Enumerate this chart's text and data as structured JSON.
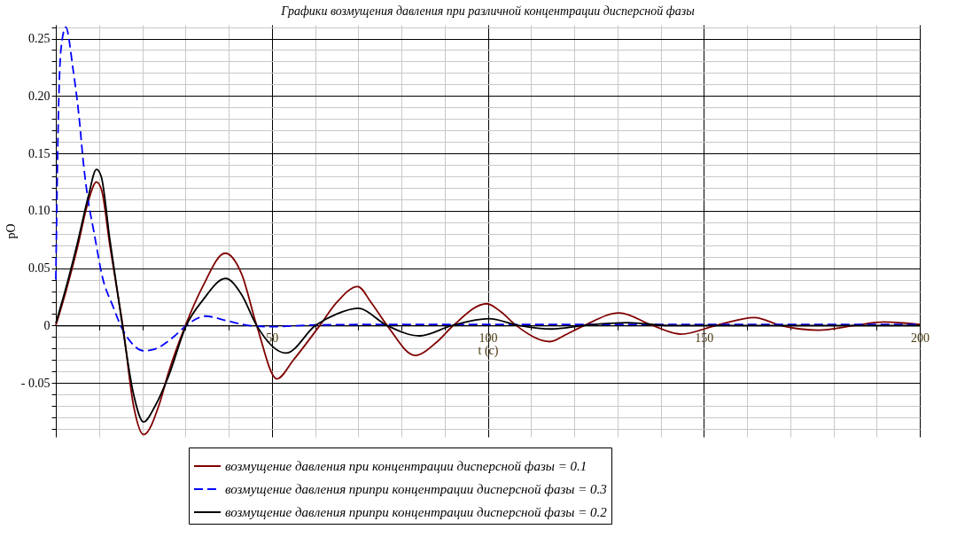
{
  "chart_data": {
    "type": "line",
    "title": "Графики возмущения давления при различной концентрации дисперсной фазы",
    "xlabel": "t (c)",
    "ylabel": "pO",
    "xlim": [
      0,
      200
    ],
    "ylim": [
      -0.097,
      0.262
    ],
    "xticks": [
      {
        "value": 0,
        "label": null
      },
      {
        "value": 10,
        "label": null
      },
      {
        "value": 20,
        "label": null
      },
      {
        "value": 30,
        "label": null
      },
      {
        "value": 40,
        "label": null
      },
      50,
      {
        "value": 60,
        "label": null
      },
      {
        "value": 70,
        "label": null
      },
      {
        "value": 80,
        "label": null
      },
      {
        "value": 90,
        "label": null
      },
      100,
      {
        "value": 110,
        "label": null
      },
      {
        "value": 120,
        "label": null
      },
      {
        "value": 130,
        "label": null
      },
      {
        "value": 140,
        "label": null
      },
      150,
      {
        "value": 160,
        "label": null
      },
      {
        "value": 170,
        "label": null
      },
      {
        "value": 180,
        "label": null
      },
      {
        "value": 190,
        "label": null
      },
      200
    ],
    "yticks": [
      {
        "value": -0.09,
        "label": null
      },
      {
        "value": -0.08,
        "label": null
      },
      {
        "value": -0.07,
        "label": null
      },
      {
        "value": -0.06,
        "label": null
      },
      {
        "value": -0.05,
        "label": "- 0.05"
      },
      {
        "value": -0.04,
        "label": null
      },
      {
        "value": -0.03,
        "label": null
      },
      {
        "value": -0.02,
        "label": null
      },
      {
        "value": -0.01,
        "label": null
      },
      0,
      {
        "value": 0.01,
        "label": null
      },
      {
        "value": 0.02,
        "label": null
      },
      {
        "value": 0.03,
        "label": null
      },
      {
        "value": 0.04,
        "label": null
      },
      0.05,
      {
        "value": 0.06,
        "label": null
      },
      {
        "value": 0.07,
        "label": null
      },
      {
        "value": 0.08,
        "label": null
      },
      {
        "value": 0.09,
        "label": null
      },
      {
        "value": 0.1,
        "label": "0.10"
      },
      {
        "value": 0.11,
        "label": null
      },
      {
        "value": 0.12,
        "label": null
      },
      {
        "value": 0.13,
        "label": null
      },
      {
        "value": 0.14,
        "label": null
      },
      0.15,
      {
        "value": 0.16,
        "label": null
      },
      {
        "value": 0.17,
        "label": null
      },
      {
        "value": 0.18,
        "label": null
      },
      {
        "value": 0.19,
        "label": null
      },
      {
        "value": 0.2,
        "label": "0.20"
      },
      {
        "value": 0.21,
        "label": null
      },
      {
        "value": 0.22,
        "label": null
      },
      {
        "value": 0.23,
        "label": null
      },
      {
        "value": 0.24,
        "label": null
      },
      0.25,
      {
        "value": 0.26,
        "label": null
      }
    ],
    "grid": true,
    "legend": "bottom",
    "series": [
      {
        "name": "возмущение давления при концентрации дисперсной фазы = 0.1",
        "color": "#800000",
        "line_style": "solid",
        "x": [
          0,
          2.5,
          5,
          7.5,
          9.4,
          10.6,
          12.5,
          14,
          15.5,
          18,
          20.3,
          24,
          26,
          30,
          34,
          39.2,
          43,
          46.5,
          51.2,
          55,
          61.1,
          65,
          69.9,
          73,
          76.7,
          83.2,
          88,
          92,
          99.8,
          103,
          106.6,
          114.4,
          118,
          122.3,
          130.4,
          138.2,
          144.7,
          152.8,
          161.7,
          167.8,
          176.6,
          184.8,
          191.6,
          200
        ],
        "values": [
          0,
          0.032,
          0.068,
          0.108,
          0.125,
          0.118,
          0.07,
          0.035,
          0,
          -0.07,
          -0.095,
          -0.068,
          -0.042,
          0,
          0.034,
          0.063,
          0.045,
          0,
          -0.0465,
          -0.03,
          0,
          0.02,
          0.034,
          0.02,
          0,
          -0.026,
          -0.015,
          0,
          0.019,
          0.012,
          0,
          -0.014,
          -0.008,
          0,
          0.011,
          0,
          -0.0075,
          0,
          0.007,
          0,
          -0.004,
          0,
          0.003,
          0.001
        ]
      },
      {
        "name": "возмущение давления припри концентрации дисперсной фазы = 0.3",
        "color": "#0000ff",
        "line_style": "dashed",
        "x": [
          0,
          0.5,
          1.2,
          2.3,
          4,
          5.4,
          6.4,
          7.4,
          8.8,
          10.8,
          13.2,
          15.2,
          17.6,
          20.3,
          23,
          27.1,
          30.2,
          34.6,
          39.3,
          44.8,
          50,
          60,
          80,
          100,
          120,
          140,
          160,
          180,
          200
        ],
        "values": [
          0.04,
          0.166,
          0.241,
          0.26,
          0.223,
          0.181,
          0.141,
          0.111,
          0.082,
          0.042,
          0.017,
          -0.0015,
          -0.0154,
          -0.022,
          -0.0204,
          -0.0104,
          0,
          0.0082,
          0.0045,
          0,
          -0.001,
          0.0005,
          0.001,
          0.001,
          0.001,
          0.001,
          0.001,
          0.001,
          0.001
        ]
      },
      {
        "name": "возмущение давления припри концентрации дисперсной фазы = 0.2",
        "color": "#000000",
        "line_style": "solid",
        "x": [
          0,
          2.5,
          5,
          7.5,
          9.4,
          10.5,
          12.5,
          15.4,
          18,
          20.3,
          23,
          26,
          30.2,
          34,
          39.3,
          43,
          46.5,
          53.3,
          60.1,
          65,
          69.9,
          76.7,
          84.2,
          91.7,
          100.2,
          107.3,
          114.8,
          122,
          132.4,
          142,
          155,
          170,
          185,
          200
        ],
        "values": [
          0.002,
          0.035,
          0.072,
          0.112,
          0.136,
          0.13,
          0.075,
          0,
          -0.06,
          -0.084,
          -0.07,
          -0.045,
          0,
          0.022,
          0.041,
          0.027,
          0,
          -0.024,
          0,
          0.01,
          0.015,
          0,
          -0.009,
          0,
          0.006,
          0,
          -0.003,
          0,
          0.0025,
          0,
          0,
          0,
          0,
          0
        ]
      }
    ]
  }
}
